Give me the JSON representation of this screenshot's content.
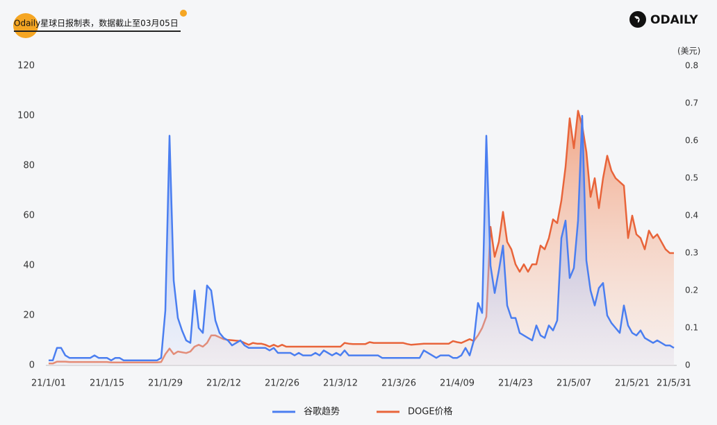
{
  "chart_data": {
    "type": "line",
    "title": "Odaily星球日报制表，数据截止至03月05日",
    "brand": "ODAILY",
    "y2_label": "(美元)",
    "categories": [
      "21/1/01",
      null,
      null,
      null,
      null,
      null,
      null,
      null,
      null,
      null,
      null,
      null,
      null,
      null,
      "21/1/15",
      null,
      null,
      null,
      null,
      null,
      null,
      null,
      null,
      null,
      null,
      null,
      null,
      null,
      "21/1/29",
      null,
      null,
      null,
      null,
      null,
      null,
      null,
      null,
      null,
      null,
      null,
      null,
      null,
      "21/2/12",
      null,
      null,
      null,
      null,
      null,
      null,
      null,
      null,
      null,
      null,
      null,
      null,
      null,
      "21/2/26",
      null,
      null,
      null,
      null,
      null,
      null,
      null,
      null,
      null,
      null,
      null,
      null,
      null,
      "21/3/12",
      null,
      null,
      null,
      null,
      null,
      null,
      null,
      null,
      null,
      null,
      null,
      null,
      null,
      "21/3/26",
      null,
      null,
      null,
      null,
      null,
      null,
      null,
      null,
      null,
      null,
      null,
      null,
      null,
      "21/4/09",
      null,
      null,
      null,
      null,
      null,
      null,
      null,
      null,
      null,
      null,
      null,
      null,
      null,
      "21/4/23",
      null,
      null,
      null,
      null,
      null,
      null,
      null,
      null,
      null,
      null,
      null,
      null,
      null,
      "21/5/07",
      null,
      null,
      null,
      null,
      null,
      null,
      null,
      null,
      null,
      null,
      null,
      null,
      null,
      "21/5/21",
      null,
      null,
      null,
      null,
      null,
      null,
      null,
      null,
      null,
      "21/5/31"
    ],
    "series": [
      {
        "name": "DOGE价格",
        "color": "#e8643a",
        "axis": "y2",
        "values": [
          0.005,
          0.005,
          0.01,
          0.01,
          0.01,
          0.009,
          0.009,
          0.009,
          0.009,
          0.009,
          0.009,
          0.009,
          0.009,
          0.009,
          0.009,
          0.008,
          0.008,
          0.008,
          0.008,
          0.008,
          0.008,
          0.008,
          0.008,
          0.008,
          0.008,
          0.008,
          0.008,
          0.009,
          0.03,
          0.045,
          0.03,
          0.037,
          0.035,
          0.033,
          0.037,
          0.05,
          0.055,
          0.05,
          0.06,
          0.08,
          0.08,
          0.075,
          0.07,
          0.068,
          0.067,
          0.066,
          0.065,
          0.06,
          0.055,
          0.06,
          0.058,
          0.058,
          0.055,
          0.05,
          0.055,
          0.05,
          0.055,
          0.05,
          0.05,
          0.05,
          0.05,
          0.05,
          0.05,
          0.05,
          0.05,
          0.05,
          0.05,
          0.05,
          0.05,
          0.05,
          0.05,
          0.06,
          0.058,
          0.057,
          0.057,
          0.057,
          0.057,
          0.062,
          0.06,
          0.06,
          0.06,
          0.06,
          0.06,
          0.06,
          0.06,
          0.06,
          0.057,
          0.055,
          0.056,
          0.057,
          0.058,
          0.058,
          0.058,
          0.058,
          0.058,
          0.058,
          0.058,
          0.065,
          0.062,
          0.06,
          0.065,
          0.07,
          0.065,
          0.08,
          0.1,
          0.13,
          0.37,
          0.29,
          0.33,
          0.41,
          0.33,
          0.31,
          0.27,
          0.25,
          0.27,
          0.25,
          0.27,
          0.27,
          0.32,
          0.31,
          0.34,
          0.39,
          0.38,
          0.44,
          0.53,
          0.66,
          0.58,
          0.68,
          0.64,
          0.57,
          0.45,
          0.5,
          0.42,
          0.5,
          0.56,
          0.52,
          0.5,
          0.49,
          0.48,
          0.34,
          0.4,
          0.35,
          0.34,
          0.31,
          0.36,
          0.34,
          0.35,
          0.33,
          0.31,
          0.3,
          0.3
        ]
      },
      {
        "name": "谷歌趋势",
        "color": "#4a7ef0",
        "axis": "y",
        "values": [
          2,
          2,
          7,
          7,
          4,
          3,
          3,
          3,
          3,
          3,
          3,
          4,
          3,
          3,
          3,
          2,
          3,
          3,
          2,
          2,
          2,
          2,
          2,
          2,
          2,
          2,
          2,
          3,
          22,
          92,
          34,
          19,
          14,
          10,
          9,
          30,
          15,
          13,
          32,
          30,
          18,
          13,
          11,
          10,
          8,
          9,
          10,
          8,
          7,
          7,
          7,
          7,
          7,
          6,
          7,
          5,
          5,
          5,
          5,
          4,
          5,
          4,
          4,
          4,
          5,
          4,
          6,
          5,
          4,
          5,
          4,
          6,
          4,
          4,
          4,
          4,
          4,
          4,
          4,
          4,
          3,
          3,
          3,
          3,
          3,
          3,
          3,
          3,
          3,
          3,
          6,
          5,
          4,
          3,
          4,
          4,
          4,
          3,
          3,
          4,
          7,
          4,
          10,
          25,
          21,
          92,
          40,
          29,
          38,
          48,
          24,
          19,
          19,
          13,
          12,
          11,
          10,
          16,
          12,
          11,
          16,
          14,
          18,
          51,
          58,
          35,
          39,
          58,
          100,
          42,
          30,
          24,
          31,
          33,
          20,
          17,
          15,
          13,
          24,
          16,
          13,
          12,
          14,
          11,
          10,
          9,
          10,
          9,
          8,
          8,
          7
        ]
      }
    ],
    "legend_order": [
      1,
      0
    ],
    "ylim": [
      0,
      120
    ],
    "yticks": [
      0,
      20,
      40,
      60,
      80,
      100,
      120
    ],
    "y2lim": [
      0,
      0.8
    ],
    "y2ticks": [
      0,
      0.1,
      0.2,
      0.3,
      0.4,
      0.5,
      0.6,
      0.7,
      0.8
    ],
    "grid": false,
    "legend": "bottom"
  }
}
